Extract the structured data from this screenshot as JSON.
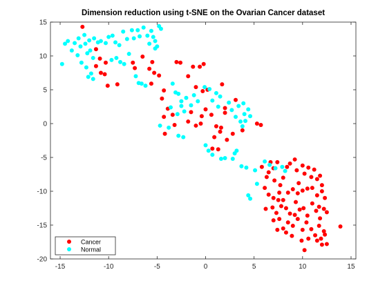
{
  "chart_data": {
    "type": "scatter",
    "title": "Dimension reduction using t-SNE on the Ovarian Cancer dataset",
    "xlabel": "",
    "ylabel": "",
    "xlim": [
      -16,
      15.5
    ],
    "ylim": [
      -20,
      15
    ],
    "xticks": [
      -15,
      -10,
      -5,
      0,
      5,
      10,
      15
    ],
    "yticks": [
      -20,
      -15,
      -10,
      -5,
      0,
      5,
      10,
      15
    ],
    "grid": false,
    "legend_position": "bottom-left",
    "series": [
      {
        "name": "Cancer",
        "color": "#ff0000",
        "points": [
          [
            -12.7,
            14.3
          ],
          [
            -11.3,
            11.0
          ],
          [
            -10.9,
            9.6
          ],
          [
            -10.3,
            9.0
          ],
          [
            -11.3,
            8.5
          ],
          [
            -10.4,
            7.3
          ],
          [
            -10.1,
            5.6
          ],
          [
            -10.8,
            7.5
          ],
          [
            -9.1,
            5.8
          ],
          [
            -7.5,
            9.0
          ],
          [
            -6.5,
            9.9
          ],
          [
            -7.3,
            8.2
          ],
          [
            -5.8,
            8.1
          ],
          [
            -4.8,
            7.1
          ],
          [
            -5.3,
            7.5
          ],
          [
            -5.6,
            5.9
          ],
          [
            -4.5,
            3.7
          ],
          [
            -4.3,
            4.9
          ],
          [
            -3.9,
            2.2
          ],
          [
            -4.3,
            1.0
          ],
          [
            -3.4,
            1.3
          ],
          [
            -3.2,
            -0.2
          ],
          [
            -4.2,
            -1.5
          ],
          [
            -5.5,
            9.1
          ],
          [
            -3.0,
            9.1
          ],
          [
            -2.6,
            9.0
          ],
          [
            -1.3,
            8.4
          ],
          [
            -0.6,
            8.4
          ],
          [
            -0.2,
            8.8
          ],
          [
            -1.8,
            7.0
          ],
          [
            -1.0,
            5.4
          ],
          [
            -0.3,
            4.8
          ],
          [
            0.2,
            5.0
          ],
          [
            1.7,
            5.8
          ],
          [
            -1.5,
            1.7
          ],
          [
            0.0,
            2.1
          ],
          [
            -1.8,
            0.3
          ],
          [
            -1.0,
            -0.3
          ],
          [
            -0.4,
            1.1
          ],
          [
            -0.5,
            0.0
          ],
          [
            0.6,
            1.3
          ],
          [
            1.1,
            -0.4
          ],
          [
            1.5,
            -1.2
          ],
          [
            1.6,
            -0.6
          ],
          [
            2.0,
            1.6
          ],
          [
            0.9,
            -2.0
          ],
          [
            0.7,
            -3.7
          ],
          [
            1.3,
            -3.8
          ],
          [
            2.8,
            -1.5
          ],
          [
            2.2,
            -2.4
          ],
          [
            2.0,
            2.3
          ],
          [
            3.1,
            3.5
          ],
          [
            5.3,
            0.0
          ],
          [
            5.7,
            -0.2
          ],
          [
            3.8,
            -1.0
          ],
          [
            5.8,
            -6.4
          ],
          [
            6.1,
            -9.5
          ],
          [
            6.3,
            -7.9
          ],
          [
            6.5,
            -7.2
          ],
          [
            6.7,
            -5.7
          ],
          [
            7.0,
            -6.6
          ],
          [
            7.1,
            -8.4
          ],
          [
            7.4,
            -5.7
          ],
          [
            7.7,
            -9.1
          ],
          [
            7.6,
            -10.2
          ],
          [
            8.0,
            -8.0
          ],
          [
            8.4,
            -6.4
          ],
          [
            8.7,
            -5.9
          ],
          [
            9.2,
            -5.3
          ],
          [
            9.4,
            -6.9
          ],
          [
            9.6,
            -8.8
          ],
          [
            10.0,
            -6.2
          ],
          [
            10.2,
            -7.4
          ],
          [
            10.6,
            -6.5
          ],
          [
            10.9,
            -7.9
          ],
          [
            11.2,
            -6.8
          ],
          [
            11.5,
            -8.2
          ],
          [
            11.8,
            -7.7
          ],
          [
            12.0,
            -9.1
          ],
          [
            12.3,
            -11.0
          ],
          [
            12.0,
            -10.0
          ],
          [
            11.5,
            -10.6
          ],
          [
            11.0,
            -9.5
          ],
          [
            10.5,
            -9.6
          ],
          [
            10.0,
            -9.9
          ],
          [
            9.5,
            -10.3
          ],
          [
            9.0,
            -9.7
          ],
          [
            8.5,
            -10.2
          ],
          [
            8.0,
            -11.3
          ],
          [
            7.5,
            -11.3
          ],
          [
            7.0,
            -11.0
          ],
          [
            6.5,
            -10.5
          ],
          [
            6.2,
            -12.6
          ],
          [
            6.9,
            -12.4
          ],
          [
            7.3,
            -13.2
          ],
          [
            7.8,
            -12.2
          ],
          [
            8.3,
            -12.5
          ],
          [
            8.7,
            -13.3
          ],
          [
            9.3,
            -11.6
          ],
          [
            9.7,
            -12.7
          ],
          [
            10.1,
            -12.5
          ],
          [
            10.5,
            -13.6
          ],
          [
            11.0,
            -11.8
          ],
          [
            11.4,
            -12.9
          ],
          [
            11.8,
            -14.0
          ],
          [
            12.2,
            -12.6
          ],
          [
            12.5,
            -13.1
          ],
          [
            7.0,
            -14.3
          ],
          [
            7.6,
            -14.1
          ],
          [
            8.0,
            -15.5
          ],
          [
            8.5,
            -14.6
          ],
          [
            9.0,
            -15.1
          ],
          [
            9.5,
            -14.1
          ],
          [
            10.0,
            -15.7
          ],
          [
            10.4,
            -14.6
          ],
          [
            10.9,
            -15.6
          ],
          [
            11.3,
            -16.5
          ],
          [
            11.7,
            -15.1
          ],
          [
            12.2,
            -15.9
          ],
          [
            8.9,
            -16.6
          ],
          [
            9.9,
            -17.3
          ],
          [
            10.6,
            -17.0
          ],
          [
            11.5,
            -17.3
          ],
          [
            12.0,
            -17.9
          ],
          [
            12.5,
            -17.8
          ],
          [
            13.9,
            -15.2
          ],
          [
            10.2,
            -18.7
          ],
          [
            11.9,
            -17.0
          ],
          [
            12.3,
            -16.4
          ],
          [
            8.3,
            -16.1
          ],
          [
            7.4,
            -15.7
          ],
          [
            9.2,
            -13.5
          ],
          [
            11.7,
            -12.3
          ]
        ]
      },
      {
        "name": "Normal",
        "color": "#00ffff",
        "points": [
          [
            -14.5,
            11.8
          ],
          [
            -14.2,
            12.2
          ],
          [
            -13.8,
            10.8
          ],
          [
            -13.5,
            11.9
          ],
          [
            -13.1,
            12.6
          ],
          [
            -12.9,
            11.4
          ],
          [
            -12.5,
            13.1
          ],
          [
            -12.4,
            11.8
          ],
          [
            -12.0,
            12.3
          ],
          [
            -12.2,
            10.4
          ],
          [
            -11.9,
            10.8
          ],
          [
            -11.5,
            12.6
          ],
          [
            -11.6,
            9.7
          ],
          [
            -11.1,
            12.0
          ],
          [
            -10.8,
            12.2
          ],
          [
            -10.3,
            11.9
          ],
          [
            -10.0,
            12.8
          ],
          [
            -9.6,
            13.0
          ],
          [
            -9.3,
            12.0
          ],
          [
            -8.9,
            11.6
          ],
          [
            -8.5,
            13.6
          ],
          [
            -8.1,
            12.5
          ],
          [
            -7.6,
            13.8
          ],
          [
            -7.4,
            12.6
          ],
          [
            -7.0,
            13.8
          ],
          [
            -6.8,
            12.9
          ],
          [
            -6.4,
            14.2
          ],
          [
            -6.0,
            13.0
          ],
          [
            -5.6,
            13.7
          ],
          [
            -5.4,
            12.8
          ],
          [
            -4.8,
            14.4
          ],
          [
            -4.6,
            14.0
          ],
          [
            -5.2,
            11.1
          ],
          [
            -5.0,
            11.4
          ],
          [
            -5.8,
            11.8
          ],
          [
            -5.2,
            12.2
          ],
          [
            -14.8,
            8.8
          ],
          [
            -13.2,
            10.1
          ],
          [
            -12.8,
            9.0
          ],
          [
            -12.3,
            8.3
          ],
          [
            -11.8,
            7.4
          ],
          [
            -12.1,
            6.9
          ],
          [
            -11.6,
            6.6
          ],
          [
            -9.7,
            9.4
          ],
          [
            -9.2,
            9.7
          ],
          [
            -8.8,
            9.1
          ],
          [
            -8.4,
            8.8
          ],
          [
            -7.9,
            10.3
          ],
          [
            -7.2,
            7.0
          ],
          [
            -6.9,
            6.0
          ],
          [
            -6.6,
            5.9
          ],
          [
            -6.2,
            5.6
          ],
          [
            -3.4,
            5.9
          ],
          [
            -3.1,
            4.6
          ],
          [
            -2.8,
            4.4
          ],
          [
            -2.5,
            3.3
          ],
          [
            -2.0,
            3.8
          ],
          [
            -3.6,
            2.4
          ],
          [
            -2.9,
            1.4
          ],
          [
            -2.5,
            2.6
          ],
          [
            -1.5,
            2.7
          ],
          [
            -1.2,
            4.2
          ],
          [
            -0.8,
            3.3
          ],
          [
            -2.2,
            1.8
          ],
          [
            -4.7,
            -0.3
          ],
          [
            -3.8,
            -0.6
          ],
          [
            -2.8,
            -1.8
          ],
          [
            -2.3,
            -2.0
          ],
          [
            -0.1,
            5.4
          ],
          [
            0.4,
            5.1
          ],
          [
            1.1,
            4.5
          ],
          [
            1.5,
            4.0
          ],
          [
            0.7,
            3.4
          ],
          [
            1.3,
            2.5
          ],
          [
            2.4,
            3.1
          ],
          [
            2.7,
            2.0
          ],
          [
            3.1,
            1.0
          ],
          [
            3.6,
            0.3
          ],
          [
            3.4,
            2.6
          ],
          [
            3.9,
            3.0
          ],
          [
            4.4,
            2.1
          ],
          [
            4.0,
            1.4
          ],
          [
            4.6,
            1.1
          ],
          [
            4.1,
            0.4
          ],
          [
            3.8,
            -0.4
          ],
          [
            0.3,
            -4.0
          ],
          [
            0.7,
            -4.6
          ],
          [
            1.6,
            -5.2
          ],
          [
            2.0,
            -5.1
          ],
          [
            2.8,
            -5.2
          ],
          [
            3.2,
            -4.0
          ],
          [
            3.0,
            -4.4
          ],
          [
            3.7,
            -6.3
          ],
          [
            4.2,
            -6.5
          ],
          [
            5.1,
            -6.9
          ],
          [
            5.3,
            -8.9
          ],
          [
            6.1,
            -5.6
          ],
          [
            6.6,
            -6.1
          ],
          [
            7.2,
            -6.6
          ],
          [
            7.9,
            -6.4
          ],
          [
            4.4,
            -10.6
          ],
          [
            4.6,
            -11.1
          ],
          [
            8.2,
            -7.0
          ],
          [
            0.0,
            -3.2
          ]
        ]
      }
    ]
  },
  "legend": {
    "items": [
      {
        "label": "Cancer",
        "color": "#ff0000"
      },
      {
        "label": "Normal",
        "color": "#00ffff"
      }
    ]
  }
}
